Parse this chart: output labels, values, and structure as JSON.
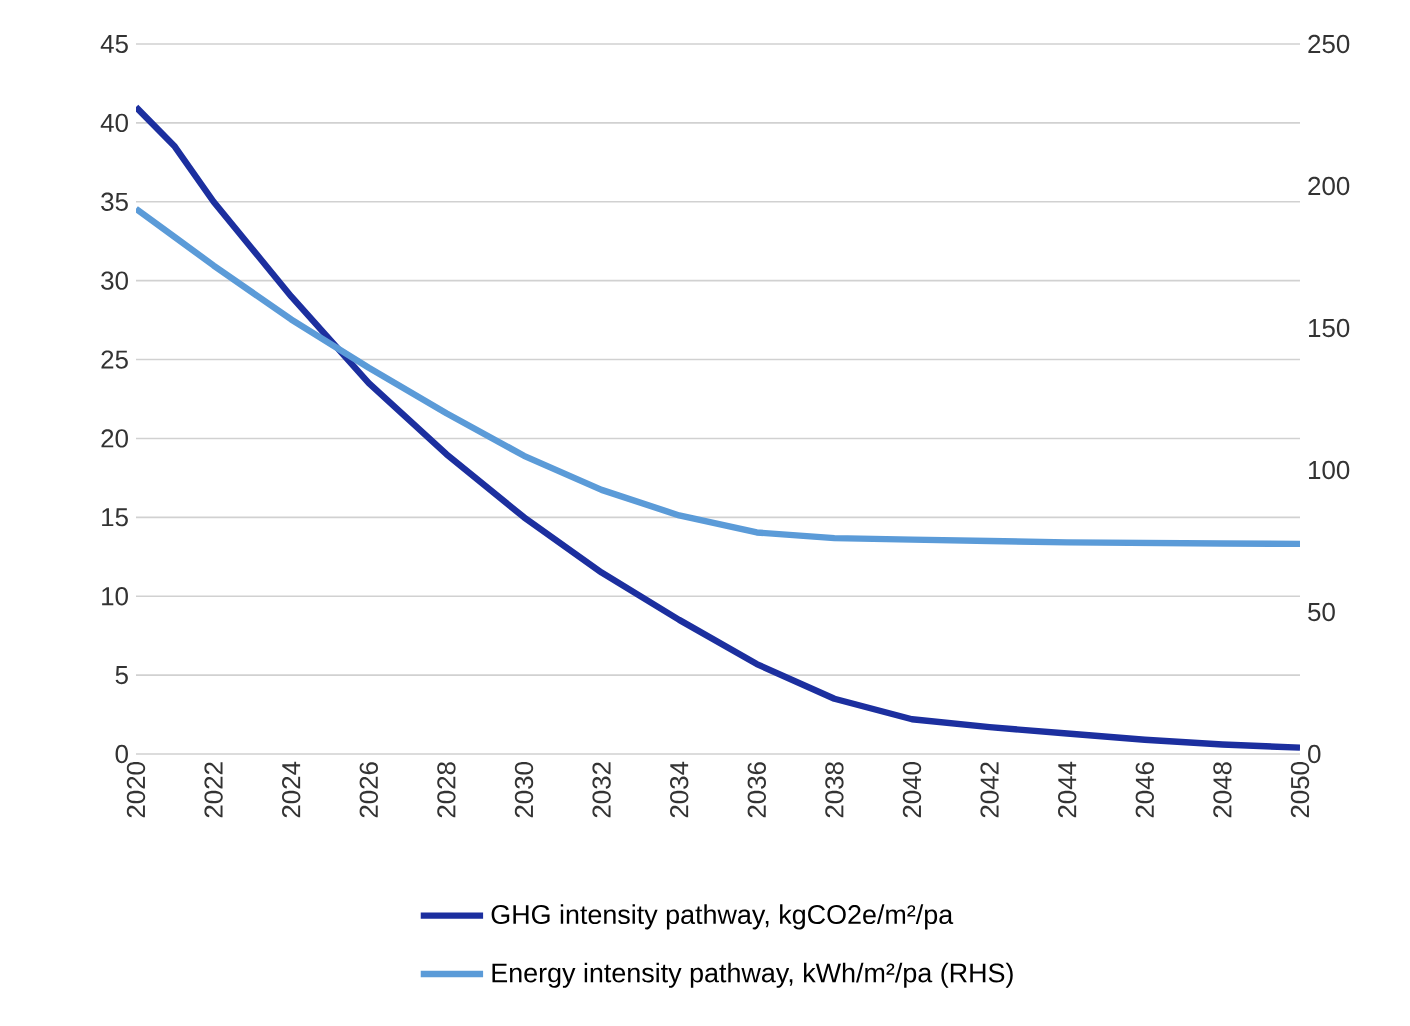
{
  "chart_data": {
    "type": "line",
    "x": [
      2020,
      2021,
      2022,
      2024,
      2026,
      2028,
      2030,
      2032,
      2034,
      2036,
      2038,
      2040,
      2042,
      2044,
      2046,
      2048,
      2050
    ],
    "series": [
      {
        "name": "GHG intensity pathway, kgCO2e/m²/pa",
        "color": "#1c2f9f",
        "values": [
          41,
          38.5,
          35,
          29,
          23.5,
          19,
          15,
          11.5,
          8.5,
          5.7,
          3.5,
          2.2,
          1.7,
          1.3,
          0.9,
          0.6,
          0.4
        ]
      },
      {
        "name": "Energy intensity pathway, kWh/m²/pa (RHS)",
        "color": "#5b9bd8",
        "axis": "y2",
        "values": [
          192,
          182,
          172,
          153,
          136,
          120,
          105,
          93,
          84,
          78,
          76,
          75.5,
          75,
          74.5,
          74.3,
          74.1,
          74
        ]
      }
    ],
    "xlim": [
      2020,
      2050
    ],
    "xticks": [
      2020,
      2022,
      2024,
      2026,
      2028,
      2030,
      2032,
      2034,
      2036,
      2038,
      2040,
      2042,
      2044,
      2046,
      2048,
      2050
    ],
    "ylim": [
      0,
      45
    ],
    "yticks": [
      0,
      5,
      10,
      15,
      20,
      25,
      30,
      35,
      40,
      45
    ],
    "y2lim": [
      0,
      250
    ],
    "y2ticks": [
      0,
      50,
      100,
      150,
      200,
      250
    ],
    "grid": "y",
    "legend": "bottom"
  }
}
